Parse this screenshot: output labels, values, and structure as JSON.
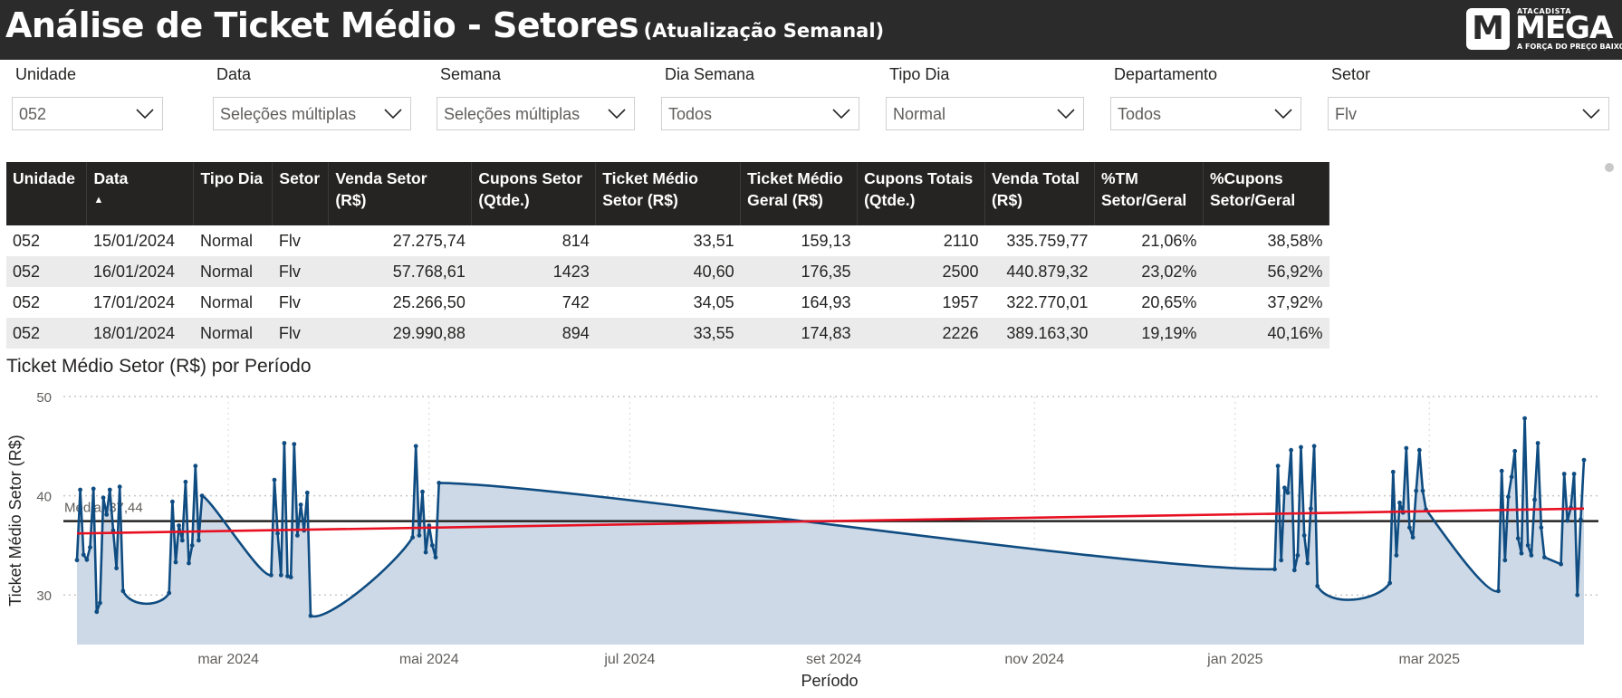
{
  "header": {
    "title": "Análise de Ticket Médio - Setores",
    "subtitle": "(Atualização Semanal)",
    "logo": {
      "mark": "M",
      "top": "ATACADISTA",
      "brand": "MEGA",
      "slogan": "A FORÇA DO PREÇO BAIXO"
    }
  },
  "filters": [
    {
      "label": "Unidade",
      "value": "052"
    },
    {
      "label": "Data",
      "value": "Seleções múltiplas"
    },
    {
      "label": "Semana",
      "value": "Seleções múltiplas"
    },
    {
      "label": "Dia Semana",
      "value": "Todos"
    },
    {
      "label": "Tipo Dia",
      "value": "Normal"
    },
    {
      "label": "Departamento",
      "value": "Todos"
    },
    {
      "label": "Setor",
      "value": "Flv"
    }
  ],
  "table": {
    "columns": [
      {
        "l1": "Unidade",
        "l2": ""
      },
      {
        "l1": "Data",
        "l2": ""
      },
      {
        "l1": "Tipo Dia",
        "l2": ""
      },
      {
        "l1": "Setor",
        "l2": ""
      },
      {
        "l1": "Venda Setor",
        "l2": "(R$)"
      },
      {
        "l1": "Cupons Setor",
        "l2": "(Qtde.)"
      },
      {
        "l1": "Ticket Médio",
        "l2": "Setor (R$)"
      },
      {
        "l1": "Ticket Médio",
        "l2": "Geral (R$)"
      },
      {
        "l1": "Cupons Totais",
        "l2": "(Qtde.)"
      },
      {
        "l1": "Venda Total",
        "l2": "(R$)"
      },
      {
        "l1": "%TM",
        "l2": "Setor/Geral"
      },
      {
        "l1": "%Cupons",
        "l2": "Setor/Geral"
      }
    ],
    "sort_indicator": "▲",
    "rows": [
      [
        "052",
        "15/01/2024",
        "Normal",
        "Flv",
        "27.275,74",
        "814",
        "33,51",
        "159,13",
        "2110",
        "335.759,77",
        "21,06%",
        "38,58%"
      ],
      [
        "052",
        "16/01/2024",
        "Normal",
        "Flv",
        "57.768,61",
        "1423",
        "40,60",
        "176,35",
        "2500",
        "440.879,32",
        "23,02%",
        "56,92%"
      ],
      [
        "052",
        "17/01/2024",
        "Normal",
        "Flv",
        "25.266,50",
        "742",
        "34,05",
        "164,93",
        "1957",
        "322.770,01",
        "20,65%",
        "37,92%"
      ],
      [
        "052",
        "18/01/2024",
        "Normal",
        "Flv",
        "29.990,88",
        "894",
        "33,55",
        "174,83",
        "2226",
        "389.163,30",
        "19,19%",
        "40,16%"
      ]
    ]
  },
  "chart_title": "Ticket Médio Setor (R$) por Período",
  "chart_data": {
    "type": "area",
    "title": "Ticket Médio Setor (R$) por Período",
    "xlabel": "Período",
    "ylabel": "Ticket Médio Setor (R$)",
    "ylim": [
      25,
      50
    ],
    "yticks": [
      30,
      40,
      50
    ],
    "xticks": [
      "mar 2024",
      "mai 2024",
      "jul 2024",
      "set 2024",
      "nov 2024",
      "jan 2025",
      "mar 2025"
    ],
    "xtick_dates": [
      "2024-03-01",
      "2024-05-01",
      "2024-07-01",
      "2024-09-01",
      "2024-11-01",
      "2025-01-01",
      "2025-03-01"
    ],
    "xrange": [
      "2024-01-15",
      "2025-04-17"
    ],
    "grid": true,
    "average_line": {
      "label": "Média: 37,44",
      "value": 37.44,
      "color": "#252423"
    },
    "trend_line": {
      "start": 36.2,
      "end": 38.7,
      "color": "#e81123"
    },
    "series": [
      {
        "color": "#0f4c81",
        "fill": "#cdd9e6",
        "points": [
          [
            "2024-01-15",
            33.51
          ],
          [
            "2024-01-16",
            40.6
          ],
          [
            "2024-01-17",
            34.05
          ],
          [
            "2024-01-18",
            33.55
          ],
          [
            "2024-01-19",
            34.8
          ],
          [
            "2024-01-20",
            40.7
          ],
          [
            "2024-01-21",
            28.3
          ],
          [
            "2024-01-22",
            29.2
          ],
          [
            "2024-01-23",
            39.8
          ],
          [
            "2024-01-24",
            38.1
          ],
          [
            "2024-01-25",
            40.6
          ],
          [
            "2024-01-26",
            36.5
          ],
          [
            "2024-01-27",
            32.7
          ],
          [
            "2024-01-28",
            40.9
          ],
          [
            "2024-01-29",
            30.4
          ],
          [
            "2024-02-12",
            30.2
          ],
          [
            "2024-02-13",
            39.4
          ],
          [
            "2024-02-14",
            33.3
          ],
          [
            "2024-02-15",
            37.0
          ],
          [
            "2024-02-16",
            35.5
          ],
          [
            "2024-02-17",
            41.4
          ],
          [
            "2024-02-18",
            33.2
          ],
          [
            "2024-02-19",
            35.0
          ],
          [
            "2024-02-20",
            43.0
          ],
          [
            "2024-02-21",
            35.5
          ],
          [
            "2024-02-22",
            40.0
          ],
          [
            "2024-03-14",
            32.0
          ],
          [
            "2024-03-15",
            41.6
          ],
          [
            "2024-03-16",
            36.2
          ],
          [
            "2024-03-17",
            32.0
          ],
          [
            "2024-03-18",
            45.3
          ],
          [
            "2024-03-19",
            31.9
          ],
          [
            "2024-03-20",
            31.8
          ],
          [
            "2024-03-21",
            45.2
          ],
          [
            "2024-03-22",
            36.0
          ],
          [
            "2024-03-23",
            39.1
          ],
          [
            "2024-03-24",
            36.5
          ],
          [
            "2024-03-25",
            40.3
          ],
          [
            "2024-03-26",
            27.9
          ],
          [
            "2024-04-26",
            35.8
          ],
          [
            "2024-04-27",
            45.0
          ],
          [
            "2024-04-28",
            36.0
          ],
          [
            "2024-04-29",
            40.4
          ],
          [
            "2024-04-30",
            34.3
          ],
          [
            "2024-05-01",
            37.0
          ],
          [
            "2024-05-02",
            35.0
          ],
          [
            "2024-05-03",
            33.8
          ],
          [
            "2024-05-04",
            41.3
          ],
          [
            "2025-01-13",
            32.6
          ],
          [
            "2025-01-14",
            43.0
          ],
          [
            "2025-01-15",
            33.5
          ],
          [
            "2025-01-16",
            40.8
          ],
          [
            "2025-01-17",
            40.3
          ],
          [
            "2025-01-18",
            44.6
          ],
          [
            "2025-01-19",
            32.5
          ],
          [
            "2025-01-20",
            34.0
          ],
          [
            "2025-01-21",
            44.9
          ],
          [
            "2025-01-22",
            36.0
          ],
          [
            "2025-01-23",
            33.2
          ],
          [
            "2025-01-24",
            38.7
          ],
          [
            "2025-01-25",
            45.0
          ],
          [
            "2025-01-26",
            30.9
          ],
          [
            "2025-02-17",
            31.2
          ],
          [
            "2025-02-18",
            42.4
          ],
          [
            "2025-02-19",
            34.0
          ],
          [
            "2025-02-20",
            39.3
          ],
          [
            "2025-02-21",
            38.3
          ],
          [
            "2025-02-22",
            44.8
          ],
          [
            "2025-02-23",
            36.8
          ],
          [
            "2025-02-24",
            35.8
          ],
          [
            "2025-02-25",
            40.5
          ],
          [
            "2025-02-26",
            44.6
          ],
          [
            "2025-02-27",
            40.5
          ],
          [
            "2025-02-28",
            38.6
          ],
          [
            "2025-03-22",
            30.4
          ],
          [
            "2025-03-23",
            42.5
          ],
          [
            "2025-03-24",
            33.5
          ],
          [
            "2025-03-25",
            39.9
          ],
          [
            "2025-03-26",
            41.9
          ],
          [
            "2025-03-27",
            44.5
          ],
          [
            "2025-03-28",
            35.7
          ],
          [
            "2025-03-29",
            34.2
          ],
          [
            "2025-03-30",
            47.8
          ],
          [
            "2025-03-31",
            35.0
          ],
          [
            "2025-04-01",
            34.0
          ],
          [
            "2025-04-02",
            39.6
          ],
          [
            "2025-04-03",
            45.3
          ],
          [
            "2025-04-04",
            36.8
          ],
          [
            "2025-04-05",
            33.8
          ],
          [
            "2025-04-10",
            33.1
          ],
          [
            "2025-04-11",
            42.2
          ],
          [
            "2025-04-12",
            37.5
          ],
          [
            "2025-04-13",
            38.8
          ],
          [
            "2025-04-14",
            42.2
          ],
          [
            "2025-04-15",
            30.0
          ],
          [
            "2025-04-16",
            37.6
          ],
          [
            "2025-04-17",
            43.6
          ]
        ]
      }
    ]
  }
}
